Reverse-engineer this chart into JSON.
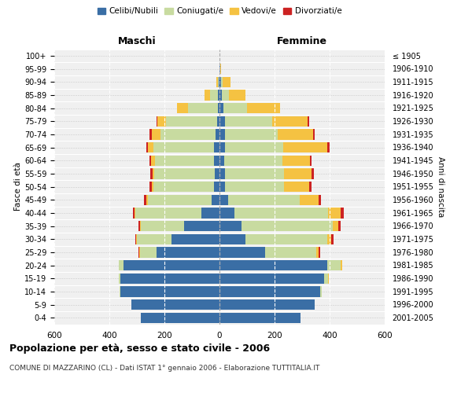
{
  "age_groups": [
    "0-4",
    "5-9",
    "10-14",
    "15-19",
    "20-24",
    "25-29",
    "30-34",
    "35-39",
    "40-44",
    "45-49",
    "50-54",
    "55-59",
    "60-64",
    "65-69",
    "70-74",
    "75-79",
    "80-84",
    "85-89",
    "90-94",
    "95-99",
    "100+"
  ],
  "birth_years": [
    "2001-2005",
    "1996-2000",
    "1991-1995",
    "1986-1990",
    "1981-1985",
    "1976-1980",
    "1971-1975",
    "1966-1970",
    "1961-1965",
    "1956-1960",
    "1951-1955",
    "1946-1950",
    "1941-1945",
    "1936-1940",
    "1931-1935",
    "1926-1930",
    "1921-1925",
    "1916-1920",
    "1911-1915",
    "1906-1910",
    "≤ 1905"
  ],
  "males": {
    "celibe": [
      285,
      320,
      360,
      360,
      350,
      230,
      175,
      130,
      65,
      30,
      20,
      18,
      20,
      20,
      15,
      10,
      5,
      5,
      2,
      0,
      0
    ],
    "coniugato": [
      0,
      0,
      2,
      5,
      15,
      60,
      125,
      155,
      240,
      230,
      220,
      220,
      215,
      220,
      200,
      185,
      110,
      30,
      5,
      0,
      0
    ],
    "vedovo": [
      0,
      0,
      0,
      0,
      0,
      2,
      2,
      3,
      5,
      5,
      5,
      5,
      15,
      20,
      30,
      30,
      40,
      20,
      5,
      0,
      0
    ],
    "divorziato": [
      0,
      0,
      0,
      0,
      2,
      3,
      5,
      5,
      5,
      8,
      8,
      8,
      5,
      5,
      8,
      5,
      0,
      0,
      0,
      0,
      0
    ]
  },
  "females": {
    "nubile": [
      295,
      345,
      365,
      380,
      390,
      165,
      95,
      80,
      55,
      30,
      20,
      20,
      18,
      20,
      20,
      20,
      15,
      8,
      5,
      2,
      0
    ],
    "coniugata": [
      0,
      2,
      5,
      15,
      50,
      185,
      295,
      330,
      340,
      260,
      215,
      215,
      210,
      210,
      190,
      170,
      85,
      25,
      5,
      0,
      0
    ],
    "vedova": [
      0,
      0,
      0,
      2,
      5,
      10,
      15,
      20,
      45,
      70,
      90,
      100,
      100,
      160,
      130,
      130,
      120,
      60,
      30,
      5,
      0
    ],
    "divorziata": [
      0,
      0,
      0,
      0,
      2,
      5,
      8,
      10,
      10,
      8,
      8,
      8,
      5,
      10,
      5,
      5,
      0,
      0,
      0,
      0,
      0
    ]
  },
  "colors": {
    "celibe": "#3a6ea5",
    "coniugato": "#c8dba0",
    "vedovo": "#f5c242",
    "divorziato": "#cc2222"
  },
  "legend_labels": [
    "Celibi/Nubili",
    "Coniugati/e",
    "Vedovi/e",
    "Divorziati/e"
  ],
  "xlim": 600,
  "title": "Popolazione per età, sesso e stato civile - 2006",
  "subtitle": "COMUNE DI MAZZARINO (CL) - Dati ISTAT 1° gennaio 2006 - Elaborazione TUTTITALIA.IT",
  "xlabel_left": "Maschi",
  "xlabel_right": "Femmine",
  "ylabel_left": "Fasce di età",
  "ylabel_right": "Anni di nascita",
  "bg_color": "#ffffff",
  "plot_bg_color": "#f0f0f0"
}
